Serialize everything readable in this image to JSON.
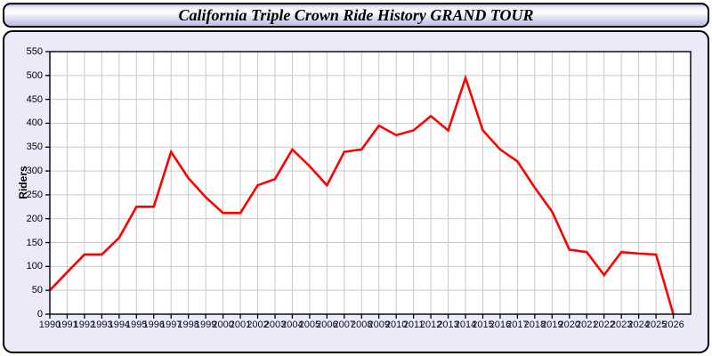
{
  "title": "California Triple Crown Ride History GRAND TOUR",
  "chart_data": {
    "type": "line",
    "title": "California Triple Crown Ride History GRAND TOUR",
    "xlabel": "",
    "ylabel": "Riders",
    "x": [
      1990,
      1991,
      1992,
      1993,
      1994,
      1995,
      1996,
      1997,
      1998,
      1999,
      2000,
      2001,
      2002,
      2003,
      2004,
      2005,
      2006,
      2007,
      2008,
      2009,
      2010,
      2011,
      2012,
      2013,
      2014,
      2015,
      2016,
      2017,
      2018,
      2019,
      2020,
      2021,
      2022,
      2023,
      2024,
      2025,
      2026
    ],
    "values": [
      50,
      88,
      125,
      125,
      160,
      225,
      225,
      340,
      285,
      245,
      212,
      212,
      270,
      283,
      345,
      310,
      270,
      340,
      345,
      395,
      375,
      385,
      415,
      385,
      495,
      385,
      345,
      320,
      265,
      215,
      135,
      130,
      82,
      130,
      127,
      125,
      0
    ],
    "y_ticks": [
      0,
      50,
      100,
      150,
      200,
      250,
      300,
      350,
      400,
      450,
      500,
      550
    ],
    "ylim": [
      0,
      550
    ],
    "xlim": [
      1990,
      2027
    ],
    "grid": "on",
    "legend": "none",
    "line_color": "#ff0000",
    "grid_color": "#c9c9c9",
    "plot_bg": "#ffffff",
    "panel_bg": "#eaeaf8",
    "axis_color": "#000000"
  }
}
